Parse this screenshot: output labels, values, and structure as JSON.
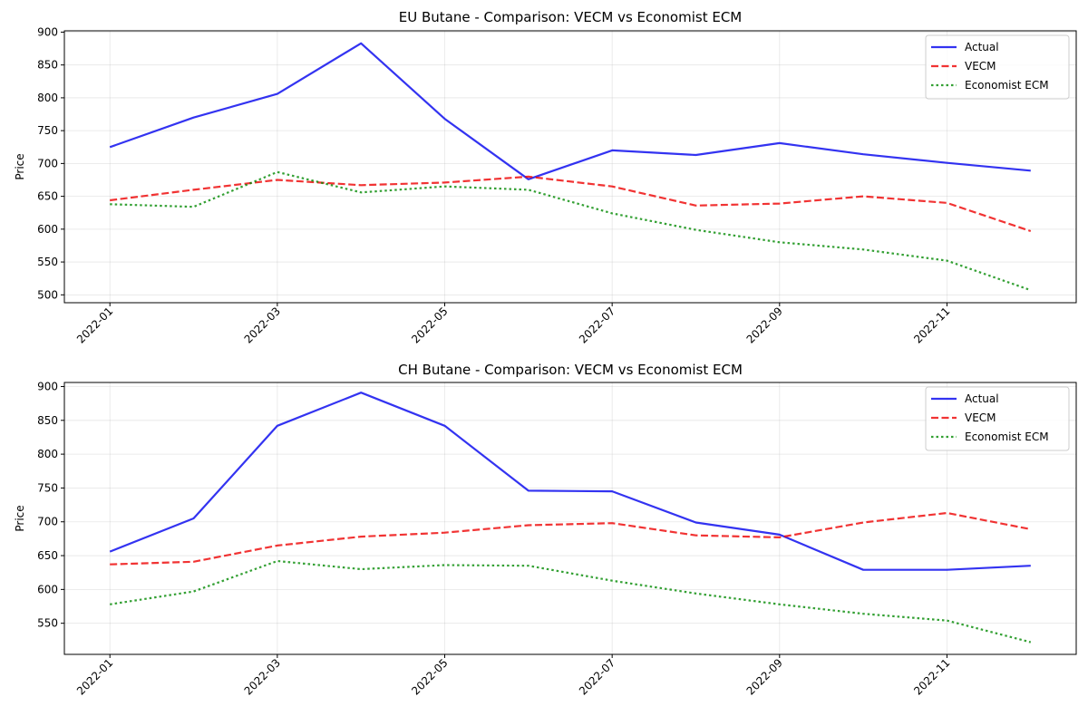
{
  "chart_data": [
    {
      "type": "line",
      "title": "EU Butane - Comparison: VECM vs Economist ECM",
      "ylabel": "Price",
      "xlabel": "",
      "x": [
        "2022-01",
        "2022-02",
        "2022-03",
        "2022-04",
        "2022-05",
        "2022-06",
        "2022-07",
        "2022-08",
        "2022-09",
        "2022-10",
        "2022-11",
        "2022-12"
      ],
      "x_ticks": [
        "2022-01",
        "2022-03",
        "2022-05",
        "2022-07",
        "2022-09",
        "2022-11"
      ],
      "ylim": [
        488,
        902
      ],
      "y_ticks": [
        500,
        550,
        600,
        650,
        700,
        750,
        800,
        850,
        900
      ],
      "grid": true,
      "legend_position": "top-right",
      "series": [
        {
          "name": "Actual",
          "color": "#0000ee",
          "style": "solid",
          "values": [
            725,
            770,
            806,
            883,
            768,
            676,
            720,
            713,
            731,
            714,
            701,
            689
          ]
        },
        {
          "name": "VECM",
          "color": "#ee0000",
          "style": "dashed",
          "values": [
            644,
            660,
            675,
            667,
            671,
            680,
            665,
            636,
            639,
            650,
            640,
            597
          ]
        },
        {
          "name": "Economist ECM",
          "color": "#008800",
          "style": "dotted",
          "values": [
            638,
            634,
            687,
            656,
            665,
            660,
            624,
            599,
            580,
            569,
            552,
            507
          ]
        }
      ]
    },
    {
      "type": "line",
      "title": "CH Butane - Comparison: VECM vs Economist ECM",
      "ylabel": "Price",
      "xlabel": "",
      "x": [
        "2022-01",
        "2022-02",
        "2022-03",
        "2022-04",
        "2022-05",
        "2022-06",
        "2022-07",
        "2022-08",
        "2022-09",
        "2022-10",
        "2022-11",
        "2022-12"
      ],
      "x_ticks": [
        "2022-01",
        "2022-03",
        "2022-05",
        "2022-07",
        "2022-09",
        "2022-11"
      ],
      "ylim": [
        504,
        906
      ],
      "y_ticks": [
        550,
        600,
        650,
        700,
        750,
        800,
        850,
        900
      ],
      "grid": true,
      "legend_position": "top-right",
      "series": [
        {
          "name": "Actual",
          "color": "#0000ee",
          "style": "solid",
          "values": [
            656,
            705,
            842,
            891,
            842,
            746,
            745,
            699,
            681,
            629,
            629,
            635
          ]
        },
        {
          "name": "VECM",
          "color": "#ee0000",
          "style": "dashed",
          "values": [
            637,
            641,
            665,
            678,
            684,
            695,
            698,
            680,
            677,
            699,
            713,
            689
          ]
        },
        {
          "name": "Economist ECM",
          "color": "#008800",
          "style": "dotted",
          "values": [
            578,
            597,
            642,
            630,
            636,
            635,
            613,
            594,
            578,
            564,
            554,
            522
          ]
        }
      ]
    }
  ]
}
